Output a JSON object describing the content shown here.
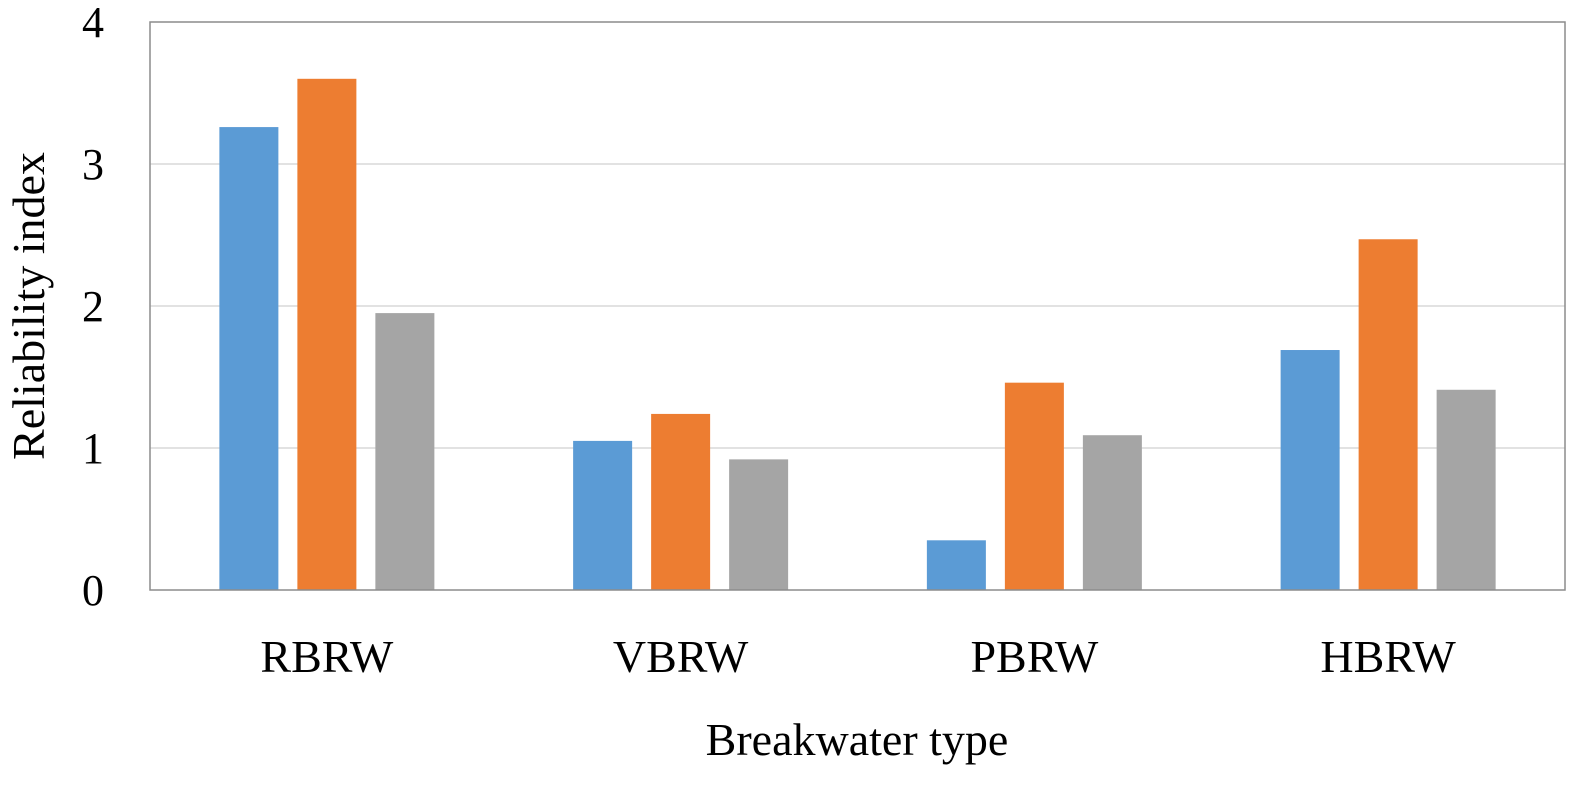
{
  "chart_data": {
    "type": "bar",
    "title": "",
    "xlabel": "Breakwater type",
    "ylabel": "Reliability index",
    "categories": [
      "RBRW",
      "VBRW",
      "PBRW",
      "HBRW"
    ],
    "series": [
      {
        "values": [
          3.26,
          1.05,
          0.35,
          1.69
        ]
      },
      {
        "values": [
          3.6,
          1.24,
          1.46,
          2.47
        ]
      },
      {
        "values": [
          1.95,
          0.92,
          1.09,
          1.41
        ]
      }
    ],
    "ylim": [
      0,
      4
    ],
    "yticks": [
      "0",
      "1",
      "2",
      "3",
      "4"
    ],
    "grid": true,
    "legend": "none"
  },
  "colors": {
    "series": [
      "#5b9bd5",
      "#ed7d31",
      "#a5a5a5"
    ],
    "grid": "#d9d9d9",
    "frame": "#8c8c8c"
  }
}
